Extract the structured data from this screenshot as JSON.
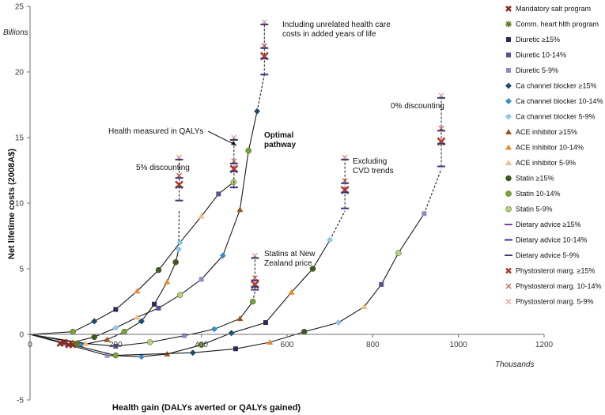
{
  "chart_data": {
    "type": "scatter",
    "title": "",
    "xlabel": "Health gain (DALYs averted or QALYs gained)",
    "ylabel": "Net lifetime costs (2008A$)",
    "x_unit_label": "Thousands",
    "y_unit_label": "Billions",
    "xlim": [
      0,
      1200
    ],
    "ylim": [
      -5,
      25
    ],
    "x_ticks": [
      0,
      200,
      400,
      600,
      800,
      1000,
      1200
    ],
    "y_ticks": [
      -5,
      0,
      5,
      10,
      15,
      20,
      25
    ],
    "grid": false,
    "legend_position": "right",
    "series": [
      {
        "name": "Mandatory salt program",
        "marker": "x-thick",
        "color": "#8a2b24"
      },
      {
        "name": "Comm. heart hlth program",
        "marker": "star",
        "color": "#5a7d24"
      },
      {
        "name": "Diuretic ≥15%",
        "marker": "square",
        "color": "#2e2757"
      },
      {
        "name": "Diuretic 10-14%",
        "marker": "square",
        "color": "#5a5290"
      },
      {
        "name": "Diuretic 5-9%",
        "marker": "square",
        "color": "#9488c2"
      },
      {
        "name": "Ca channel blocker ≥15%",
        "marker": "diamond",
        "color": "#1a4c6e"
      },
      {
        "name": "Ca channel blocker 10-14%",
        "marker": "diamond",
        "color": "#3b8ec2"
      },
      {
        "name": "Ca channel blocker 5-9%",
        "marker": "diamond",
        "color": "#8cc6e8"
      },
      {
        "name": "ACE inhibitor ≥15%",
        "marker": "triangle",
        "color": "#a0521d"
      },
      {
        "name": "ACE inhibitor 10-14%",
        "marker": "triangle",
        "color": "#e68a2e"
      },
      {
        "name": "ACE inhibitor 5-9%",
        "marker": "triangle",
        "color": "#f5bb85"
      },
      {
        "name": "Statin ≥15%",
        "marker": "circle",
        "color": "#3f5a1c"
      },
      {
        "name": "Statin 10-14%",
        "marker": "circle",
        "color": "#79a33a"
      },
      {
        "name": "Statin 5-9%",
        "marker": "circle",
        "color": "#b6d27c"
      },
      {
        "name": "Dietary advice ≥15%",
        "marker": "dash",
        "color": "#7b3fa5"
      },
      {
        "name": "Dietary advice 10-14%",
        "marker": "dash",
        "color": "#4a2e7e"
      },
      {
        "name": "Dietary advice 5-9%",
        "marker": "dash",
        "color": "#3b3b70"
      },
      {
        "name": "Phystosterol marg. ≥15%",
        "marker": "x-thick",
        "color": "#b23a32"
      },
      {
        "name": "Phystosterol marg. 10-14%",
        "marker": "x",
        "color": "#d2453c"
      },
      {
        "name": "Phystosterol marg. 5-9%",
        "marker": "x",
        "color": "#e58d86"
      }
    ],
    "pathways": [
      {
        "name": "5% discounting",
        "points": [
          [
            0,
            0
          ],
          [
            80,
            -0.7
          ],
          [
            120,
            -0.8
          ],
          [
            180,
            -0.4
          ],
          [
            220,
            0.2
          ],
          [
            260,
            1.0
          ],
          [
            290,
            2.3
          ],
          [
            320,
            4.0
          ],
          [
            340,
            5.5
          ],
          [
            347,
            6.5
          ],
          [
            348,
            9.5
          ]
        ]
      },
      {
        "name": "Health measured in QALYs",
        "points": [
          [
            0,
            0
          ],
          [
            100,
            0.2
          ],
          [
            150,
            1.0
          ],
          [
            200,
            1.9
          ],
          [
            250,
            3.3
          ],
          [
            300,
            4.9
          ],
          [
            350,
            7.0
          ],
          [
            400,
            9.0
          ],
          [
            440,
            10.7
          ],
          [
            475,
            11.6
          ],
          [
            476,
            11.0
          ]
        ]
      },
      {
        "name": "Optimal pathway",
        "points": [
          [
            0,
            0
          ],
          [
            100,
            -0.6
          ],
          [
            150,
            -0.2
          ],
          [
            200,
            0.5
          ],
          [
            250,
            1.3
          ],
          [
            300,
            2.0
          ],
          [
            350,
            3.0
          ],
          [
            400,
            4.2
          ],
          [
            450,
            6.0
          ],
          [
            490,
            9.5
          ],
          [
            510,
            14.0
          ],
          [
            530,
            17.0
          ],
          [
            547,
            19.8
          ]
        ]
      },
      {
        "name": "Statins at New Zealand price",
        "points": [
          [
            0,
            0
          ],
          [
            130,
            -0.7
          ],
          [
            200,
            -0.9
          ],
          [
            280,
            -0.6
          ],
          [
            360,
            -0.1
          ],
          [
            430,
            0.4
          ],
          [
            490,
            1.2
          ],
          [
            520,
            2.5
          ],
          [
            525,
            3.3
          ]
        ]
      },
      {
        "name": "Excluding CVD trends",
        "points": [
          [
            0,
            0
          ],
          [
            180,
            -1.6
          ],
          [
            260,
            -1.7
          ],
          [
            320,
            -1.5
          ],
          [
            400,
            -0.8
          ],
          [
            470,
            0.1
          ],
          [
            550,
            0.9
          ],
          [
            610,
            3.2
          ],
          [
            660,
            5.0
          ],
          [
            700,
            7.2
          ],
          [
            735,
            9.4
          ]
        ]
      },
      {
        "name": "0% discounting",
        "points": [
          [
            0,
            0
          ],
          [
            200,
            -1.6
          ],
          [
            380,
            -1.4
          ],
          [
            480,
            -1.1
          ],
          [
            560,
            -0.6
          ],
          [
            640,
            0.2
          ],
          [
            720,
            0.9
          ],
          [
            780,
            2.1
          ],
          [
            820,
            3.8
          ],
          [
            860,
            6.2
          ],
          [
            920,
            9.2
          ],
          [
            960,
            12.6
          ]
        ]
      }
    ],
    "tops": [
      {
        "pathway": "5% discounting",
        "x": 348,
        "values": [
          10.2,
          11.4,
          12.1,
          13.5
        ]
      },
      {
        "pathway": "Health measured in QALYs",
        "x": 476,
        "values": [
          11.2,
          12.6,
          13.2,
          15.0
        ]
      },
      {
        "pathway": "Optimal pathway",
        "x": 547,
        "values": [
          19.8,
          21.2,
          22.0,
          23.8
        ]
      },
      {
        "pathway": "Statins at New Zealand price",
        "x": 525,
        "values": [
          3.4,
          3.8,
          4.3,
          6.0
        ]
      },
      {
        "pathway": "Excluding CVD trends",
        "x": 735,
        "values": [
          9.6,
          11.0,
          11.7,
          13.5
        ]
      },
      {
        "pathway": "0% discounting",
        "x": 960,
        "values": [
          12.8,
          14.7,
          15.7,
          18.2
        ]
      }
    ],
    "annotations": [
      {
        "id": "ann1",
        "lines": [
          "Including unrelated health care",
          "costs in added years of life"
        ]
      },
      {
        "id": "ann2",
        "lines": [
          "0% discounting"
        ]
      },
      {
        "id": "ann3",
        "lines": [
          "Health measured in QALYs"
        ]
      },
      {
        "id": "ann4",
        "lines": [
          "Optimal",
          "pathway"
        ],
        "bold": true
      },
      {
        "id": "ann5",
        "lines": [
          "5% discounting"
        ]
      },
      {
        "id": "ann6",
        "lines": [
          "Excluding",
          "CVD trends"
        ]
      },
      {
        "id": "ann7",
        "lines": [
          "Statins at New",
          "Zealand price"
        ]
      }
    ]
  }
}
